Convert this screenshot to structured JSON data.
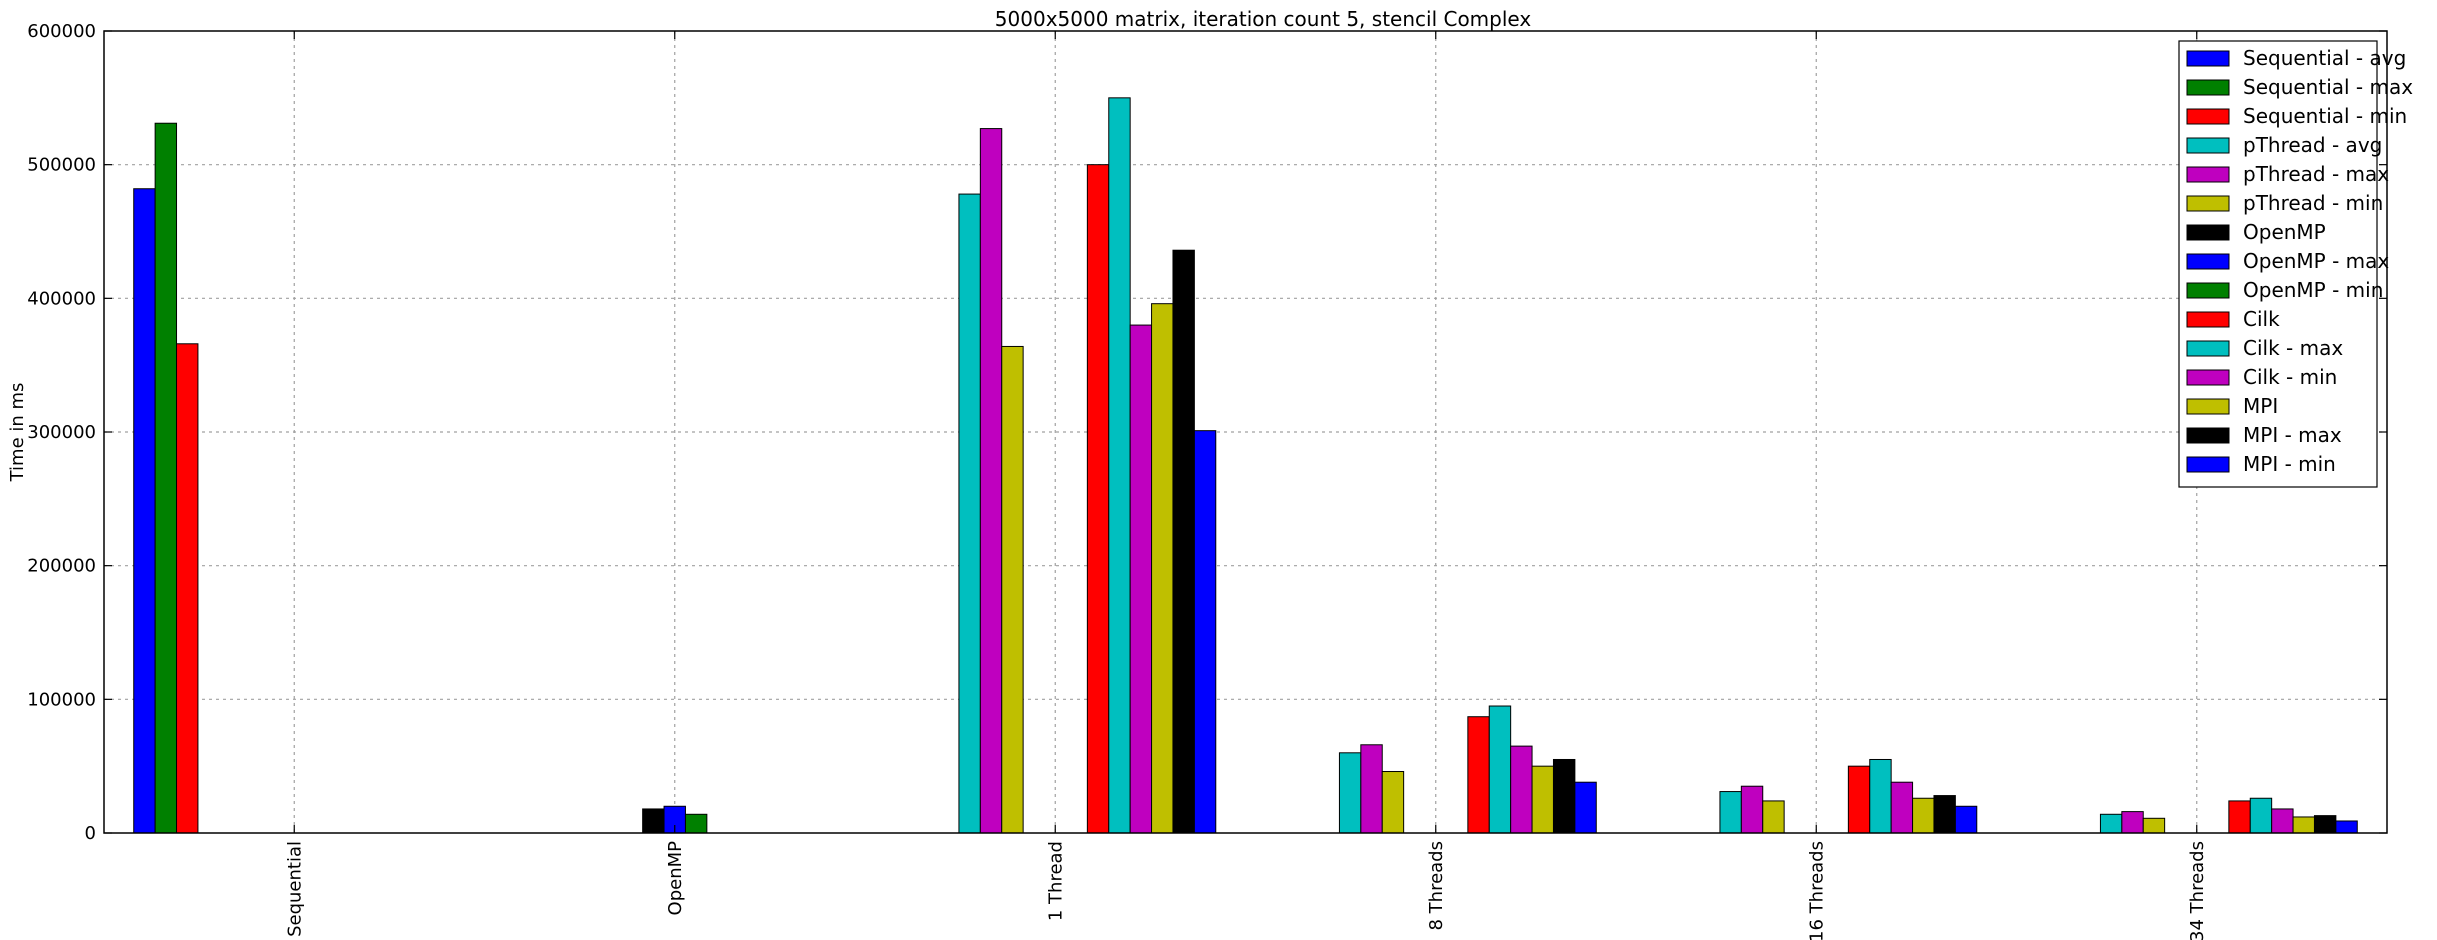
{
  "chart_data": {
    "type": "bar",
    "title": "5000x5000 matrix, iteration count 5, stencil Complex",
    "ylabel": "Time in ms",
    "xlabel": "",
    "ylim": [
      0,
      600000
    ],
    "yticks": [
      0,
      100000,
      200000,
      300000,
      400000,
      500000,
      600000
    ],
    "ytick_labels": [
      "0",
      "100000",
      "200000",
      "300000",
      "400000",
      "500000",
      "600000"
    ],
    "grid": true,
    "legend_position": "top-right",
    "categories": [
      "Sequential",
      "OpenMP",
      "1 Thread",
      "8 Threads",
      "16 Threads",
      "34 Threads"
    ],
    "series": [
      {
        "name": "Sequential - avg",
        "color": "#0000ff",
        "values": [
          482000,
          0,
          0,
          0,
          0,
          0
        ]
      },
      {
        "name": "Sequential - max",
        "color": "#008000",
        "values": [
          531000,
          0,
          0,
          0,
          0,
          0
        ]
      },
      {
        "name": "Sequential - min",
        "color": "#ff0000",
        "values": [
          366000,
          0,
          0,
          0,
          0,
          0
        ]
      },
      {
        "name": "pThread - avg",
        "color": "#00bfbf",
        "values": [
          0,
          0,
          478000,
          60000,
          31000,
          14000
        ]
      },
      {
        "name": "pThread - max",
        "color": "#bf00bf",
        "values": [
          0,
          0,
          527000,
          66000,
          35000,
          16000
        ]
      },
      {
        "name": "pThread - min",
        "color": "#bfbf00",
        "values": [
          0,
          0,
          364000,
          46000,
          24000,
          11000
        ]
      },
      {
        "name": "OpenMP",
        "color": "#000000",
        "values": [
          0,
          18000,
          0,
          0,
          0,
          0
        ]
      },
      {
        "name": "OpenMP - max",
        "color": "#0000ff",
        "values": [
          0,
          20000,
          0,
          0,
          0,
          0
        ]
      },
      {
        "name": "OpenMP - min",
        "color": "#008000",
        "values": [
          0,
          14000,
          0,
          0,
          0,
          0
        ]
      },
      {
        "name": "Cilk",
        "color": "#ff0000",
        "values": [
          0,
          0,
          500000,
          87000,
          50000,
          24000
        ]
      },
      {
        "name": "Cilk - max",
        "color": "#00bfbf",
        "values": [
          0,
          0,
          550000,
          95000,
          55000,
          26000
        ]
      },
      {
        "name": "Cilk - min",
        "color": "#bf00bf",
        "values": [
          0,
          0,
          380000,
          65000,
          38000,
          18000
        ]
      },
      {
        "name": "MPI",
        "color": "#bfbf00",
        "values": [
          0,
          0,
          396000,
          50000,
          26000,
          12000
        ]
      },
      {
        "name": "MPI - max",
        "color": "#000000",
        "values": [
          0,
          0,
          436000,
          55000,
          28000,
          13000
        ]
      },
      {
        "name": "MPI - min",
        "color": "#0000ff",
        "values": [
          0,
          0,
          301000,
          38000,
          20000,
          9000
        ]
      }
    ]
  }
}
